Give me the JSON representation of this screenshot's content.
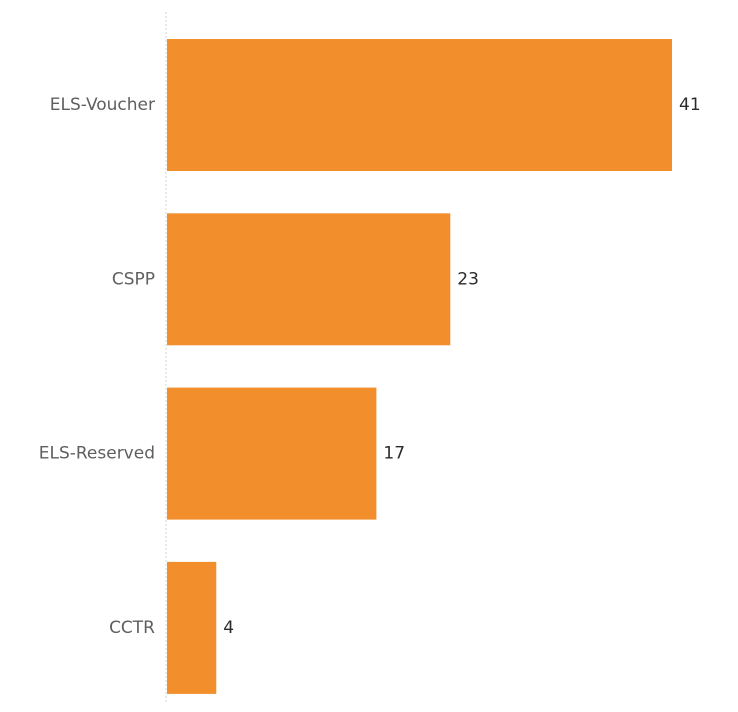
{
  "chart_data": {
    "type": "bar",
    "orientation": "horizontal",
    "categories": [
      "ELS-Voucher",
      "CSPP",
      "ELS-Reserved",
      "CCTR"
    ],
    "values": [
      41,
      23,
      17,
      4
    ],
    "data_labels": [
      "41",
      "23",
      "17",
      "4"
    ],
    "xlim": [
      0,
      41
    ],
    "grid": false,
    "legend": "none",
    "title": "",
    "xlabel": "",
    "ylabel": "",
    "colors": {
      "bar": "#F28E2B",
      "axis": "#d4d4d4",
      "category_text": "#5f5f5f",
      "value_text": "#2b2b2b"
    }
  }
}
